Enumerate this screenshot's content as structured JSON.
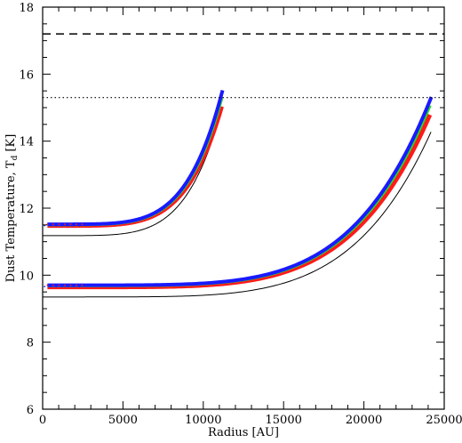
{
  "chart_data": {
    "type": "line",
    "xlabel": "Radius [AU]",
    "ylabel": "Dust Temperature, T",
    "ylabel_subscript": "d",
    "ylabel_unit": " [K]",
    "xlim": [
      0,
      25000
    ],
    "ylim": [
      6,
      18
    ],
    "x_ticks": [
      0,
      5000,
      10000,
      15000,
      20000,
      25000
    ],
    "y_ticks": [
      6,
      8,
      10,
      12,
      14,
      16,
      18
    ],
    "x_tick_labels": [
      "0",
      "5000",
      "10000",
      "15000",
      "20000",
      "25000"
    ],
    "y_tick_labels": [
      "6",
      "8",
      "10",
      "12",
      "14",
      "16",
      "18"
    ],
    "grid": false,
    "reference_lines": [
      {
        "style": "dashed",
        "y": 17.2,
        "color": "#000000"
      },
      {
        "style": "dotted",
        "y": 15.3,
        "color": "#000000"
      }
    ],
    "groups": [
      {
        "T0": 11.5,
        "T_center_black": 11.18,
        "R_out": 11200,
        "T_edge": 15.5,
        "T_edge_black": 15.05,
        "x_start": 300
      },
      {
        "T0": 9.68,
        "T_center_black": 9.35,
        "R_out": 24200,
        "T_edge": 15.3,
        "T_edge_black": 14.3,
        "x_start": 300
      }
    ],
    "colors": {
      "blue": "#1a1aff",
      "red": "#ff1a1a",
      "green": "#22dd22",
      "black": "#000000"
    }
  }
}
